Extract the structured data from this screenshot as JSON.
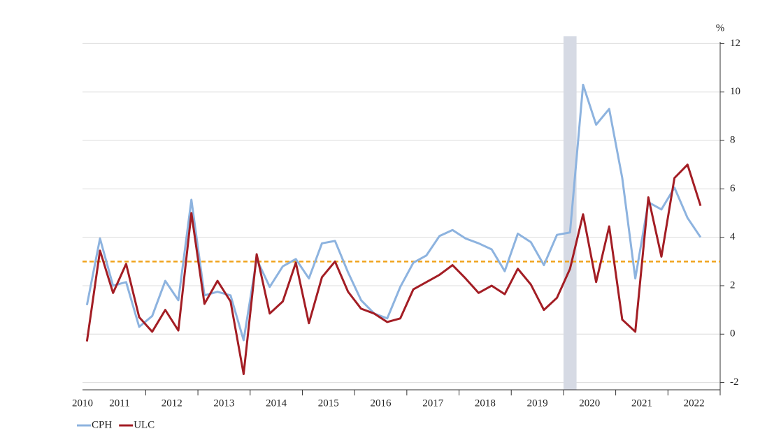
{
  "chart_data": {
    "type": "line",
    "y_axis_label": "%",
    "x": [
      2010.875,
      2011.125,
      2011.375,
      2011.625,
      2011.875,
      2012.125,
      2012.375,
      2012.625,
      2012.875,
      2013.125,
      2013.375,
      2013.625,
      2013.875,
      2014.125,
      2014.375,
      2014.625,
      2014.875,
      2015.125,
      2015.375,
      2015.625,
      2015.875,
      2016.125,
      2016.375,
      2016.625,
      2016.875,
      2017.125,
      2017.375,
      2017.625,
      2017.875,
      2018.125,
      2018.375,
      2018.625,
      2018.875,
      2019.125,
      2019.375,
      2019.625,
      2019.875,
      2020.125,
      2020.375,
      2020.625,
      2020.875,
      2021.125,
      2021.375,
      2021.625,
      2021.875,
      2022.125,
      2022.375,
      2022.625
    ],
    "series": [
      {
        "name": "CPH",
        "color": "#8db3df",
        "values": [
          1.2,
          3.95,
          2.0,
          2.15,
          0.3,
          0.75,
          2.2,
          1.4,
          5.55,
          1.6,
          1.75,
          1.6,
          -0.25,
          3.1,
          1.95,
          2.8,
          3.1,
          2.3,
          3.75,
          3.85,
          2.55,
          1.4,
          0.85,
          0.65,
          1.95,
          2.95,
          3.25,
          4.05,
          4.3,
          3.95,
          3.75,
          3.5,
          2.6,
          4.15,
          3.8,
          2.85,
          4.1,
          4.2,
          10.3,
          8.65,
          9.3,
          6.45,
          2.3,
          5.45,
          5.15,
          6.05,
          4.8,
          4.0
        ]
      },
      {
        "name": "ULC",
        "color": "#a31d24",
        "values": [
          -0.3,
          3.45,
          1.7,
          2.9,
          0.7,
          0.1,
          1.0,
          0.15,
          5.0,
          1.25,
          2.2,
          1.35,
          -1.65,
          3.3,
          0.85,
          1.35,
          2.95,
          0.45,
          2.35,
          3.0,
          1.75,
          1.05,
          0.85,
          0.5,
          0.65,
          1.85,
          2.15,
          2.45,
          2.85,
          2.3,
          1.7,
          2.0,
          1.65,
          2.7,
          2.05,
          1.0,
          1.5,
          2.7,
          4.95,
          2.15,
          4.45,
          0.6,
          0.1,
          5.65,
          3.2,
          6.45,
          7.0,
          5.3
        ]
      }
    ],
    "xlim": [
      2010.79,
      2023
    ],
    "xticks": [
      {
        "value": 2010.79,
        "label": "2010"
      },
      {
        "value": 2011.5,
        "label": "2011"
      },
      {
        "value": 2012.5,
        "label": "2012"
      },
      {
        "value": 2013.5,
        "label": "2013"
      },
      {
        "value": 2014.5,
        "label": "2014"
      },
      {
        "value": 2015.5,
        "label": "2015"
      },
      {
        "value": 2016.5,
        "label": "2016"
      },
      {
        "value": 2017.5,
        "label": "2017"
      },
      {
        "value": 2018.5,
        "label": "2018"
      },
      {
        "value": 2019.5,
        "label": "2019"
      },
      {
        "value": 2020.5,
        "label": "2020"
      },
      {
        "value": 2021.5,
        "label": "2021"
      },
      {
        "value": 2022.5,
        "label": "2022"
      }
    ],
    "ylim": [
      -2.3,
      12.3
    ],
    "yticks": [
      -2,
      0,
      2,
      4,
      6,
      8,
      10,
      12
    ],
    "y_axis_side": "right",
    "grid": true,
    "reference_line": {
      "value": 3,
      "color": "#f0a41e"
    },
    "shaded_band": {
      "x": [
        2020,
        2020.25
      ],
      "color": "#d6dae4"
    },
    "legend": "bottom-left"
  }
}
